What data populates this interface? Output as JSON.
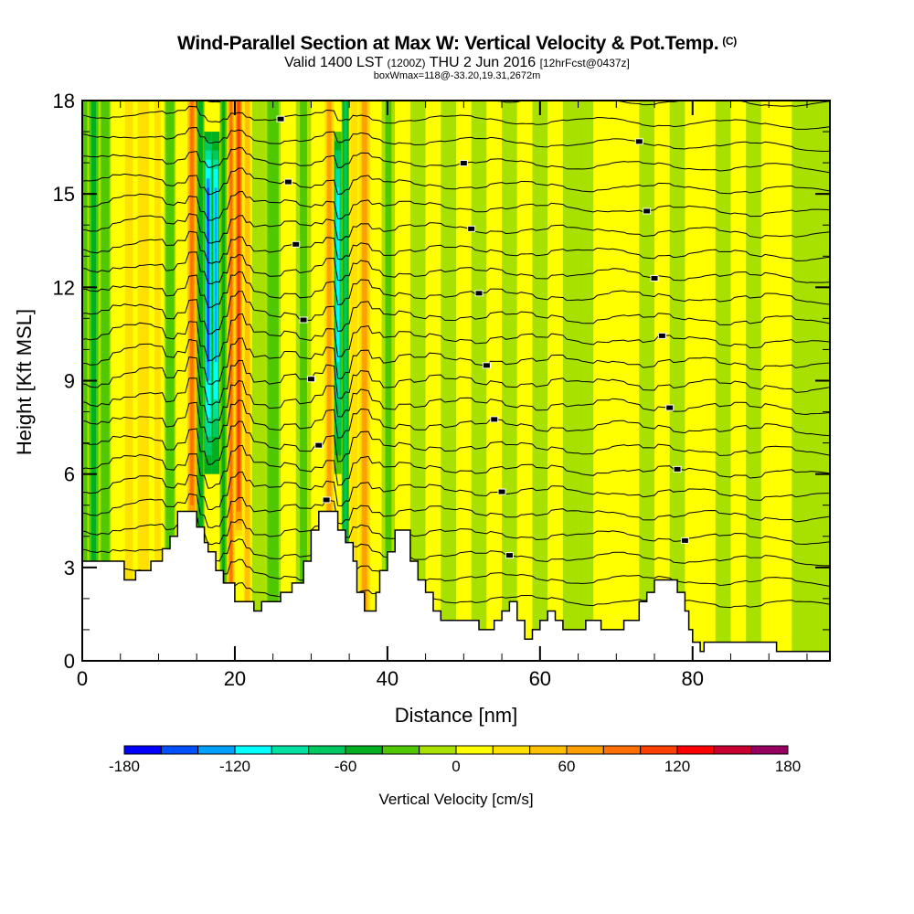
{
  "title": {
    "main": "Wind-Parallel Section at Max W: Vertical Velocity & Pot.Temp.",
    "copyright": "(C)",
    "valid_prefix": "Valid 1400 LST",
    "valid_z": "(1200Z)",
    "valid_date": "THU 2 Jun 2016",
    "forecast": "[12hrFcst@0437z]",
    "boxwmax": "boxWmax=118@-33.20,19.31,2672m"
  },
  "chart_data": {
    "type": "heatmap",
    "title": "Wind-Parallel Section at Max W: Vertical Velocity & Pot.Temp.",
    "xlabel": "Distance [nm]",
    "ylabel": "Height [Kft MSL]",
    "xlim": [
      0,
      98
    ],
    "ylim": [
      0,
      18
    ],
    "x_ticks": [
      "0",
      "20",
      "40",
      "60",
      "80"
    ],
    "x_tick_values": [
      0,
      20,
      40,
      60,
      80
    ],
    "x_minor_step": 5,
    "y_ticks": [
      "0",
      "3",
      "6",
      "9",
      "12",
      "15",
      "18"
    ],
    "y_tick_values": [
      0,
      3,
      6,
      9,
      12,
      15,
      18
    ],
    "y_minor_step": 1,
    "colorbar": {
      "label": "Vertical Velocity [cm/s]",
      "levels": [
        -180,
        -160,
        -140,
        -120,
        -100,
        -80,
        -60,
        -40,
        -20,
        0,
        20,
        40,
        60,
        80,
        100,
        120,
        140,
        160,
        180
      ],
      "tick_labels": [
        "-180",
        "-120",
        "-60",
        "0",
        "60",
        "120",
        "180"
      ],
      "tick_values": [
        -180,
        -120,
        -60,
        0,
        60,
        120,
        180
      ],
      "colors": [
        "#0000ff",
        "#0050ff",
        "#00a0ff",
        "#00ffff",
        "#00e0a0",
        "#00c860",
        "#00b020",
        "#50c800",
        "#a8e000",
        "#ffff00",
        "#ffe000",
        "#ffc000",
        "#ffa000",
        "#ff7000",
        "#ff4000",
        "#ff0000",
        "#c80030",
        "#960060"
      ]
    },
    "w_field_columns": [
      {
        "x": 0,
        "w": -40
      },
      {
        "x": 1.5,
        "w": -50
      },
      {
        "x": 3,
        "w": -30
      },
      {
        "x": 4.5,
        "w": 5
      },
      {
        "x": 6,
        "w": 20
      },
      {
        "x": 8,
        "w": 35
      },
      {
        "x": 10,
        "w": 25
      },
      {
        "x": 11.5,
        "w": -30
      },
      {
        "x": 13,
        "w": 10
      },
      {
        "x": 14.5,
        "w": 90
      },
      {
        "x": 15.5,
        "w": -60
      },
      {
        "x": 16.5,
        "w": -150
      },
      {
        "x": 17.5,
        "w": -130
      },
      {
        "x": 18.5,
        "w": -50
      },
      {
        "x": 19.5,
        "w": 80
      },
      {
        "x": 20.5,
        "w": 110
      },
      {
        "x": 21.5,
        "w": 40
      },
      {
        "x": 23,
        "w": -10
      },
      {
        "x": 25,
        "w": -30
      },
      {
        "x": 27,
        "w": 5
      },
      {
        "x": 29,
        "w": -25
      },
      {
        "x": 31,
        "w": 10
      },
      {
        "x": 32.5,
        "w": 60
      },
      {
        "x": 33.5,
        "w": -110
      },
      {
        "x": 34.5,
        "w": -70
      },
      {
        "x": 35.5,
        "w": 30
      },
      {
        "x": 37,
        "w": 60
      },
      {
        "x": 38.5,
        "w": 10
      },
      {
        "x": 40,
        "w": -25
      },
      {
        "x": 42,
        "w": 5
      },
      {
        "x": 44,
        "w": -15
      },
      {
        "x": 46,
        "w": 10
      },
      {
        "x": 48,
        "w": -10
      },
      {
        "x": 50,
        "w": 5
      },
      {
        "x": 52,
        "w": -15
      },
      {
        "x": 54,
        "w": 10
      },
      {
        "x": 56,
        "w": -10
      },
      {
        "x": 58,
        "w": 5
      },
      {
        "x": 60,
        "w": -15
      },
      {
        "x": 62,
        "w": 10
      },
      {
        "x": 64,
        "w": -10
      },
      {
        "x": 66,
        "w": -15
      },
      {
        "x": 68,
        "w": 5
      },
      {
        "x": 70,
        "w": 15
      },
      {
        "x": 72,
        "w": 5
      },
      {
        "x": 74,
        "w": -15
      },
      {
        "x": 76,
        "w": 10
      },
      {
        "x": 78,
        "w": -10
      },
      {
        "x": 80,
        "w": 5
      },
      {
        "x": 82,
        "w": 10
      },
      {
        "x": 84,
        "w": -10
      },
      {
        "x": 86,
        "w": 5
      },
      {
        "x": 88,
        "w": -15
      },
      {
        "x": 90,
        "w": 10
      },
      {
        "x": 92,
        "w": 5
      },
      {
        "x": 94,
        "w": -15
      },
      {
        "x": 96,
        "w": -10
      }
    ],
    "terrain_kft": [
      [
        0,
        3.2
      ],
      [
        5.5,
        3.2
      ],
      [
        5.5,
        2.6
      ],
      [
        7,
        2.6
      ],
      [
        7,
        2.9
      ],
      [
        9,
        2.9
      ],
      [
        9,
        3.2
      ],
      [
        10.5,
        3.2
      ],
      [
        10.5,
        3.6
      ],
      [
        11.5,
        3.6
      ],
      [
        11.5,
        4.0
      ],
      [
        12.5,
        4.0
      ],
      [
        12.5,
        4.8
      ],
      [
        15,
        4.8
      ],
      [
        15,
        4.3
      ],
      [
        16,
        4.3
      ],
      [
        16,
        3.8
      ],
      [
        16.5,
        3.8
      ],
      [
        16.5,
        3.5
      ],
      [
        17.5,
        3.5
      ],
      [
        17.5,
        2.9
      ],
      [
        18.5,
        2.9
      ],
      [
        18.5,
        2.5
      ],
      [
        20,
        2.5
      ],
      [
        20,
        1.9
      ],
      [
        22.5,
        1.9
      ],
      [
        22.5,
        1.6
      ],
      [
        23.5,
        1.6
      ],
      [
        23.5,
        1.9
      ],
      [
        26,
        1.9
      ],
      [
        26,
        2.2
      ],
      [
        27.5,
        2.2
      ],
      [
        27.5,
        2.5
      ],
      [
        29,
        2.5
      ],
      [
        29,
        3.2
      ],
      [
        30,
        3.2
      ],
      [
        30,
        4.2
      ],
      [
        31,
        4.2
      ],
      [
        31,
        4.8
      ],
      [
        33.5,
        4.8
      ],
      [
        33.5,
        4.2
      ],
      [
        34.5,
        4.2
      ],
      [
        34.5,
        3.8
      ],
      [
        35.5,
        3.8
      ],
      [
        35.5,
        3.2
      ],
      [
        36,
        3.2
      ],
      [
        36,
        2.2
      ],
      [
        37,
        2.2
      ],
      [
        37,
        1.6
      ],
      [
        38.5,
        1.6
      ],
      [
        38.5,
        2.2
      ],
      [
        39,
        2.2
      ],
      [
        39,
        2.9
      ],
      [
        40,
        2.9
      ],
      [
        40,
        3.5
      ],
      [
        41,
        3.5
      ],
      [
        41,
        4.2
      ],
      [
        43,
        4.2
      ],
      [
        43,
        3.2
      ],
      [
        44,
        3.2
      ],
      [
        44,
        2.6
      ],
      [
        45,
        2.6
      ],
      [
        45,
        2.2
      ],
      [
        46,
        2.2
      ],
      [
        46,
        1.6
      ],
      [
        47,
        1.6
      ],
      [
        47,
        1.3
      ],
      [
        52,
        1.3
      ],
      [
        52,
        1.0
      ],
      [
        54,
        1.0
      ],
      [
        54,
        1.3
      ],
      [
        55,
        1.3
      ],
      [
        55,
        1.6
      ],
      [
        56,
        1.6
      ],
      [
        56,
        1.9
      ],
      [
        57,
        1.9
      ],
      [
        57,
        1.3
      ],
      [
        58,
        1.3
      ],
      [
        58,
        0.7
      ],
      [
        59,
        0.7
      ],
      [
        59,
        1.0
      ],
      [
        60,
        1.0
      ],
      [
        60,
        1.3
      ],
      [
        61,
        1.3
      ],
      [
        61,
        1.6
      ],
      [
        62,
        1.6
      ],
      [
        62,
        1.3
      ],
      [
        63,
        1.3
      ],
      [
        63,
        1.0
      ],
      [
        66,
        1.0
      ],
      [
        66,
        1.3
      ],
      [
        68,
        1.3
      ],
      [
        68,
        1.0
      ],
      [
        71,
        1.0
      ],
      [
        71,
        1.3
      ],
      [
        73,
        1.3
      ],
      [
        73,
        1.9
      ],
      [
        74,
        1.9
      ],
      [
        74,
        2.2
      ],
      [
        75,
        2.2
      ],
      [
        75,
        2.6
      ],
      [
        78,
        2.6
      ],
      [
        78,
        2.2
      ],
      [
        79,
        2.2
      ],
      [
        79,
        1.6
      ],
      [
        79.5,
        1.6
      ],
      [
        79.5,
        1.0
      ],
      [
        80,
        1.0
      ],
      [
        80,
        0.6
      ],
      [
        81,
        0.6
      ],
      [
        81,
        0.3
      ],
      [
        81.5,
        0.3
      ],
      [
        81.5,
        0.6
      ],
      [
        91,
        0.6
      ],
      [
        91,
        0.3
      ],
      [
        98,
        0.3
      ]
    ]
  }
}
